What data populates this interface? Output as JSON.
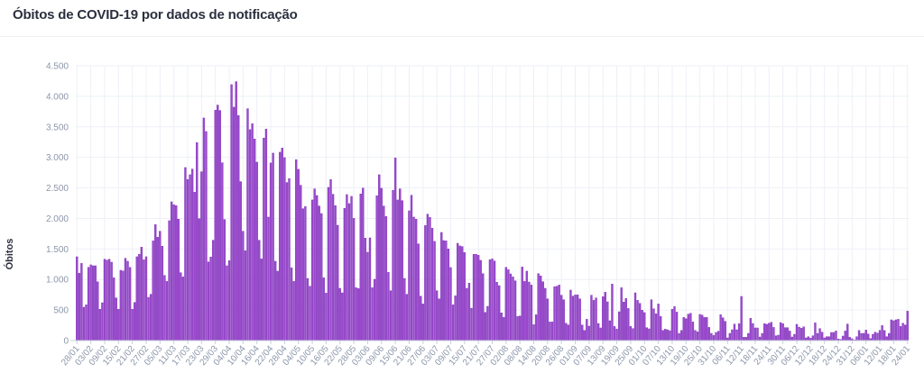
{
  "header": {
    "title": "Óbitos de COVID-19 por dados de notificação"
  },
  "colors": {
    "bar": "#9a4bcc",
    "bar_edge": "#7d2fb8",
    "grid": "#eef0f6",
    "tick": "#8c96ab"
  },
  "chart_data": {
    "type": "bar",
    "title": "Óbitos de COVID-19 por dados de notificação",
    "xlabel": "",
    "ylabel": "Óbitos",
    "ylim": [
      0,
      4500
    ],
    "yticks": [
      0,
      500,
      1000,
      1500,
      2000,
      2500,
      3000,
      3500,
      4000,
      4500
    ],
    "ytick_labels": [
      "0",
      "500",
      "1.000",
      "1.500",
      "2.000",
      "2.500",
      "3.000",
      "3.500",
      "4.000",
      "4.500"
    ],
    "grid": true,
    "label_every": 6,
    "x_tick_labels": [
      "28/01",
      "03/02",
      "09/02",
      "15/02",
      "21/02",
      "27/02",
      "05/03",
      "11/03",
      "17/03",
      "23/03",
      "29/03",
      "04/04",
      "10/04",
      "16/04",
      "22/04",
      "28/04",
      "04/05",
      "10/05",
      "16/05",
      "22/05",
      "28/05",
      "03/06",
      "09/06",
      "15/06",
      "21/06",
      "27/06",
      "03/07",
      "09/07",
      "15/07",
      "21/07",
      "27/07",
      "02/08",
      "08/08",
      "14/08",
      "20/08",
      "26/08",
      "01/09",
      "07/09",
      "13/09",
      "19/09",
      "25/09",
      "01/10",
      "07/10",
      "13/10",
      "19/10",
      "25/10",
      "31/10",
      "06/11",
      "12/11",
      "18/11",
      "24/11",
      "30/11",
      "06/12",
      "12/12",
      "18/12",
      "24/12",
      "31/12",
      "06/01",
      "12/01",
      "18/01",
      "24/01"
    ],
    "values": [
      1373,
      1102,
      1264,
      546,
      585,
      1200,
      1240,
      1225,
      1225,
      964,
      512,
      620,
      1333,
      1318,
      1333,
      1284,
      1028,
      699,
      512,
      1151,
      1141,
      1348,
      1299,
      1200,
      512,
      625,
      1373,
      1412,
      1530,
      1323,
      1373,
      708,
      758,
      1633,
      1899,
      1692,
      1791,
      1545,
      1068,
      969,
      1963,
      2273,
      2224,
      2209,
      1988,
      1112,
      1043,
      2834,
      2637,
      2716,
      2809,
      2430,
      3242,
      1998,
      2765,
      3646,
      3424,
      1289,
      1368,
      1643,
      3774,
      3857,
      3769,
      2913,
      1983,
      1225,
      1309,
      4192,
      3823,
      4241,
      3685,
      2603,
      1791,
      1471,
      3798,
      3454,
      3552,
      3301,
      2922,
      1643,
      1338,
      3316,
      3464,
      2022,
      2908,
      3070,
      1299,
      1137,
      3085,
      3154,
      2996,
      2588,
      2652,
      1191,
      969,
      2962,
      2804,
      2544,
      2160,
      2194,
      1018,
      890,
      2303,
      2485,
      2376,
      2204,
      2081,
      1028,
      777,
      2509,
      2637,
      2396,
      2209,
      1889,
      856,
      782,
      2165,
      2391,
      2243,
      2362,
      2002,
      866,
      851,
      2401,
      2499,
      1678,
      1446,
      1682,
      866,
      1004,
      2371,
      2716,
      2494,
      2204,
      2032,
      1117,
      817,
      2460,
      2991,
      2303,
      2485,
      2293,
      1018,
      758,
      2125,
      2381,
      2022,
      1988,
      1584,
      728,
      600,
      1884,
      2071,
      2017,
      1840,
      1624,
      817,
      684,
      1771,
      1638,
      1633,
      1501,
      1196,
      585,
      733,
      1594,
      1550,
      1540,
      1442,
      856,
      940,
      531,
      1412,
      1412,
      1397,
      1314,
      1097,
      462,
      561,
      1323,
      1338,
      1304,
      955,
      900,
      453,
      379,
      1200,
      1161,
      1092,
      1043,
      979,
      394,
      403,
      1205,
      969,
      1137,
      959,
      910,
      261,
      423,
      1097,
      1058,
      964,
      856,
      684,
      305,
      305,
      881,
      890,
      910,
      743,
      669,
      285,
      256,
      827,
      728,
      748,
      748,
      684,
      256,
      167,
      349,
      236,
      743,
      659,
      699,
      280,
      207,
      718,
      792,
      635,
      325,
      925,
      231,
      187,
      472,
      866,
      630,
      689,
      526,
      231,
      197,
      782,
      659,
      610,
      497,
      458,
      212,
      192,
      669,
      521,
      438,
      600,
      394,
      167,
      187,
      177,
      162,
      512,
      556,
      467,
      118,
      167,
      379,
      359,
      433,
      448,
      305,
      167,
      143,
      428,
      418,
      379,
      379,
      216,
      118,
      84,
      133,
      153,
      423,
      374,
      315,
      44,
      118,
      177,
      271,
      177,
      276,
      723,
      54,
      54,
      118,
      364,
      280,
      207,
      207,
      59,
      118,
      276,
      266,
      285,
      300,
      216,
      79,
      89,
      295,
      276,
      212,
      212,
      157,
      59,
      103,
      266,
      221,
      202,
      226,
      44,
      64,
      39,
      79,
      290,
      118,
      197,
      138,
      44,
      64,
      64,
      133,
      133,
      157,
      25,
      20,
      74,
      157,
      271,
      54,
      30,
      10,
      64,
      167,
      118,
      118,
      172,
      108,
      34,
      103,
      138,
      123,
      167,
      246,
      167,
      64,
      118,
      340,
      325,
      340,
      349,
      231,
      285,
      256,
      482
    ]
  }
}
